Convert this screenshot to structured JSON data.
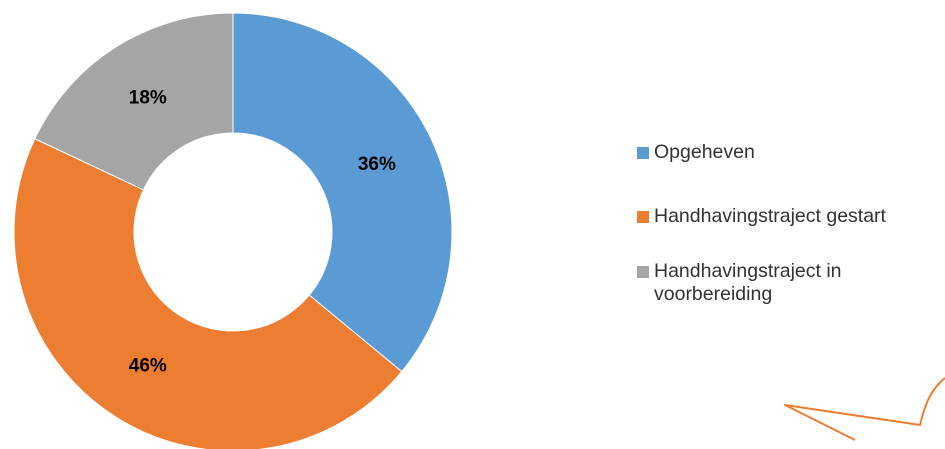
{
  "chart_data": {
    "type": "pie",
    "categories": [
      "Opgeheven",
      "Handhavingstraject gestart",
      "Handhavingstraject in voorbereiding"
    ],
    "values": [
      36,
      46,
      18
    ],
    "labels": [
      "36%",
      "46%",
      "18%"
    ],
    "colors": [
      "#5B9BD5",
      "#ED7D31",
      "#A5A5A5"
    ],
    "hole": "donut",
    "legend_position": "right"
  },
  "legend": {
    "items": [
      {
        "label": "Opgeheven",
        "color": "#5B9BD5"
      },
      {
        "label": "Handhavingstraject gestart",
        "color": "#ED7D31"
      },
      {
        "label": "Handhavingstraject in voorbereiding",
        "color": "#A5A5A5"
      }
    ]
  },
  "decoration": {
    "icon": "speech-bubble-outline-icon",
    "color": "#ED7D31"
  }
}
